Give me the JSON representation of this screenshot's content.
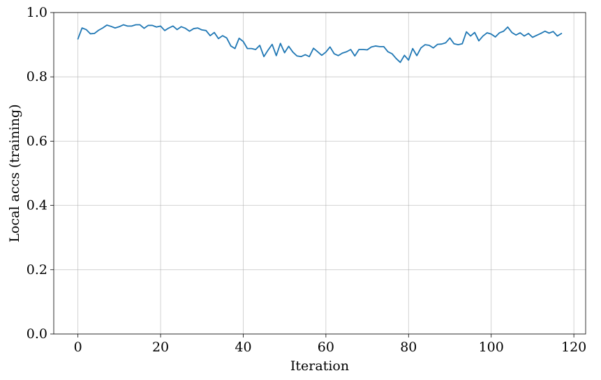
{
  "chart_data": {
    "type": "line",
    "title": "",
    "xlabel": "Iteration",
    "ylabel": "Local accs (training)",
    "xlim": [
      -5.85,
      122.85
    ],
    "ylim": [
      0.0,
      1.0
    ],
    "xticks": [
      0,
      20,
      40,
      60,
      80,
      100,
      120
    ],
    "yticks": [
      0.0,
      0.2,
      0.4,
      0.6,
      0.8,
      1.0
    ],
    "xtick_labels": [
      "0",
      "20",
      "40",
      "60",
      "80",
      "100",
      "120"
    ],
    "ytick_labels": [
      "0.0",
      "0.2",
      "0.4",
      "0.6",
      "0.8",
      "1.0"
    ],
    "grid": true,
    "legend": "none",
    "series": [
      {
        "color": "#1f77b4",
        "x": [
          0,
          1,
          2,
          3,
          4,
          5,
          6,
          7,
          8,
          9,
          10,
          11,
          12,
          13,
          14,
          15,
          16,
          17,
          18,
          19,
          20,
          21,
          22,
          23,
          24,
          25,
          26,
          27,
          28,
          29,
          30,
          31,
          32,
          33,
          34,
          35,
          36,
          37,
          38,
          39,
          40,
          41,
          42,
          43,
          44,
          45,
          46,
          47,
          48,
          49,
          50,
          51,
          52,
          53,
          54,
          55,
          56,
          57,
          58,
          59,
          60,
          61,
          62,
          63,
          64,
          65,
          66,
          67,
          68,
          69,
          70,
          71,
          72,
          73,
          74,
          75,
          76,
          77,
          78,
          79,
          80,
          81,
          82,
          83,
          84,
          85,
          86,
          87,
          88,
          89,
          90,
          91,
          92,
          93,
          94,
          95,
          96,
          97,
          98,
          99,
          100,
          101,
          102,
          103,
          104,
          105,
          106,
          107,
          108,
          109,
          110,
          111,
          112,
          113,
          114,
          115,
          116,
          117
        ],
        "values": [
          0.918,
          0.952,
          0.947,
          0.934,
          0.935,
          0.945,
          0.952,
          0.961,
          0.957,
          0.952,
          0.956,
          0.962,
          0.958,
          0.958,
          0.962,
          0.962,
          0.951,
          0.96,
          0.96,
          0.955,
          0.958,
          0.944,
          0.952,
          0.958,
          0.947,
          0.956,
          0.951,
          0.942,
          0.95,
          0.952,
          0.946,
          0.944,
          0.928,
          0.938,
          0.919,
          0.928,
          0.921,
          0.896,
          0.888,
          0.92,
          0.91,
          0.888,
          0.888,
          0.885,
          0.898,
          0.863,
          0.883,
          0.901,
          0.866,
          0.904,
          0.875,
          0.895,
          0.877,
          0.865,
          0.863,
          0.869,
          0.863,
          0.889,
          0.878,
          0.867,
          0.877,
          0.893,
          0.872,
          0.866,
          0.874,
          0.878,
          0.885,
          0.865,
          0.885,
          0.885,
          0.884,
          0.893,
          0.896,
          0.894,
          0.894,
          0.878,
          0.872,
          0.857,
          0.845,
          0.867,
          0.852,
          0.888,
          0.866,
          0.89,
          0.9,
          0.898,
          0.89,
          0.901,
          0.902,
          0.906,
          0.921,
          0.903,
          0.9,
          0.903,
          0.94,
          0.927,
          0.938,
          0.912,
          0.927,
          0.937,
          0.933,
          0.924,
          0.937,
          0.942,
          0.955,
          0.938,
          0.93,
          0.937,
          0.927,
          0.935,
          0.923,
          0.929,
          0.935,
          0.942,
          0.936,
          0.941,
          0.927,
          0.935
        ]
      }
    ]
  }
}
